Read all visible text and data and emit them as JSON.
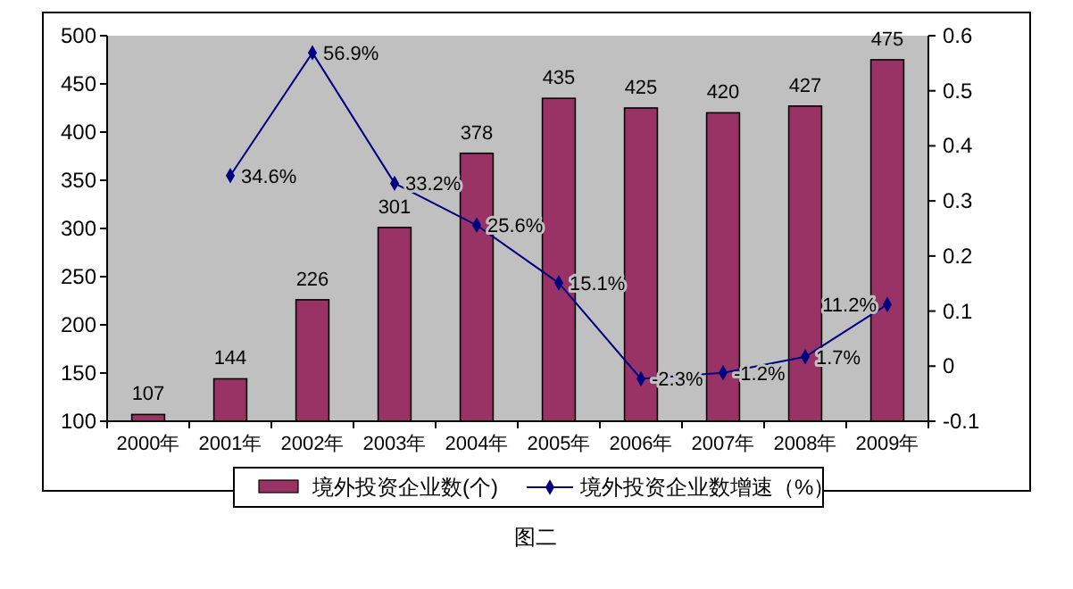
{
  "chart_data": {
    "type": "bar",
    "categories": [
      "2000年",
      "2001年",
      "2002年",
      "2003年",
      "2004年",
      "2005年",
      "2006年",
      "2007年",
      "2008年",
      "2009年"
    ],
    "series": [
      {
        "name": "境外投资企业数(个)",
        "color": "#993366",
        "values": [
          107,
          144,
          226,
          301,
          378,
          435,
          425,
          420,
          427,
          475
        ],
        "value_labels": [
          "107",
          "144",
          "226",
          "301",
          "378",
          "435",
          "425",
          "420",
          "427",
          "475"
        ]
      },
      {
        "name": "境外投资企业数增速（%）",
        "type": "line",
        "axis": "y2",
        "color": "#000080",
        "marker": "diamond",
        "values": [
          null,
          0.346,
          0.569,
          0.332,
          0.256,
          0.151,
          -0.023,
          -0.012,
          0.017,
          0.112
        ],
        "value_labels": [
          null,
          "34.6%",
          "56.9%",
          "33.2%",
          "25.6%",
          "15.1%",
          "-2.3%",
          "-1.2%",
          "1.7%",
          "11.2%"
        ]
      }
    ],
    "ylim": [
      100,
      500
    ],
    "yticks": [
      100,
      150,
      200,
      250,
      300,
      350,
      400,
      450,
      500
    ],
    "y2lim": [
      -0.1,
      0.6
    ],
    "y2ticks": [
      -0.1,
      0,
      0.1,
      0.2,
      0.3,
      0.4,
      0.5,
      0.6
    ],
    "legend": "bottom",
    "grid": false,
    "annotations": [
      "图二"
    ]
  }
}
